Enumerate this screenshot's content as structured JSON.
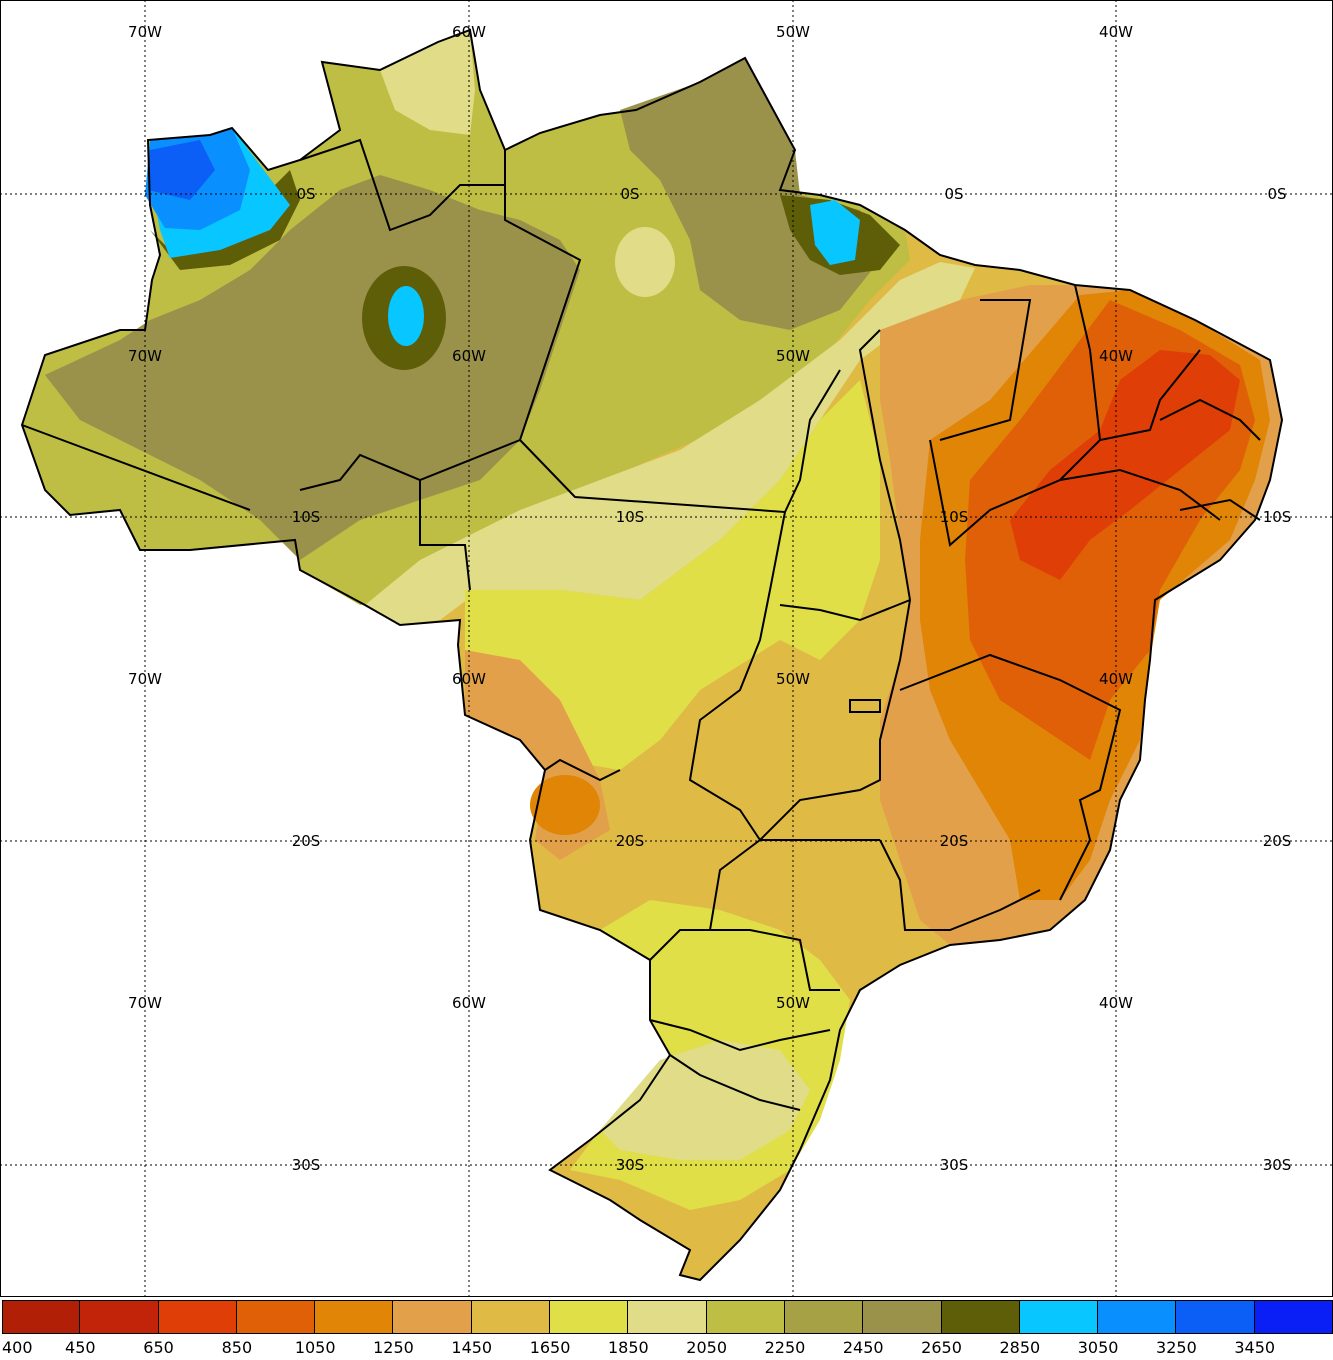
{
  "map": {
    "lon_labels": [
      "70W",
      "60W",
      "50W",
      "40W"
    ],
    "lat_labels": [
      "0S",
      "10S",
      "20S",
      "30S"
    ],
    "colors": {
      "c400": "#a51d06",
      "c450": "#c2240a",
      "c650": "#e03e07",
      "c850": "#e06008",
      "c1050": "#e08506",
      "c1250": "#e2a04a",
      "c1450": "#dfbb45",
      "c1650": "#e1df48",
      "c1850": "#e0dc87",
      "c2050": "#bebe44",
      "c2250": "#a6a145",
      "c2450": "#9a924a",
      "c2650": "#5f5e08",
      "c2850": "#08c6ff",
      "c3050": "#0a8fff",
      "c3250": "#0b5ff7",
      "c3450": "#0a1ef6"
    }
  },
  "colorbar": {
    "labels": [
      "400",
      "450",
      "650",
      "850",
      "1050",
      "1250",
      "1450",
      "1650",
      "1850",
      "2050",
      "2250",
      "2450",
      "2650",
      "2850",
      "3050",
      "3250",
      "3450"
    ],
    "colors": [
      "#b01f06",
      "#c2240a",
      "#e03e07",
      "#e06008",
      "#e08506",
      "#e2a04a",
      "#dfbb45",
      "#e1df48",
      "#e0dc87",
      "#bebe44",
      "#a6a145",
      "#9a924a",
      "#5f5e08",
      "#08c6ff",
      "#0a8fff",
      "#0b5ff7",
      "#0a1ef6"
    ]
  }
}
